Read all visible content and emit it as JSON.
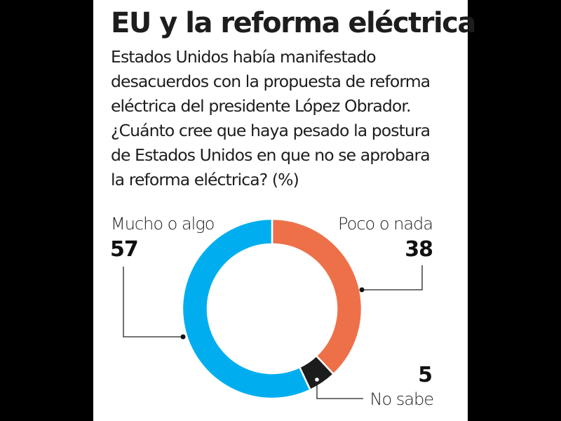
{
  "title": "EU y la reforma eléctrica",
  "question": "Estados Unidos había manifestado desacuerdos con la propuesta de reforma eléctrica del presidente López Obrador. ¿Cuánto cree que haya pesado la postura de Estados Unidos en que no se aprobara la reforma eléctrica? (%)",
  "chart_data": {
    "type": "pie",
    "variant": "donut",
    "title": "EU y la reforma eléctrica",
    "unit": "%",
    "start": "12 o'clock, clockwise",
    "slices": [
      {
        "label": "Poco o nada",
        "value": 38,
        "color": "#ee7049"
      },
      {
        "label": "No sabe",
        "value": 5,
        "color": "#1c1c1c"
      },
      {
        "label": "Mucho o algo",
        "value": 57,
        "color": "#00aeef"
      }
    ]
  },
  "labels": {
    "mucho": {
      "label": "Mucho o algo",
      "value": "57"
    },
    "poco": {
      "label": "Poco o nada",
      "value": "38"
    },
    "nosabe": {
      "label": "No sabe",
      "value": "5"
    }
  }
}
